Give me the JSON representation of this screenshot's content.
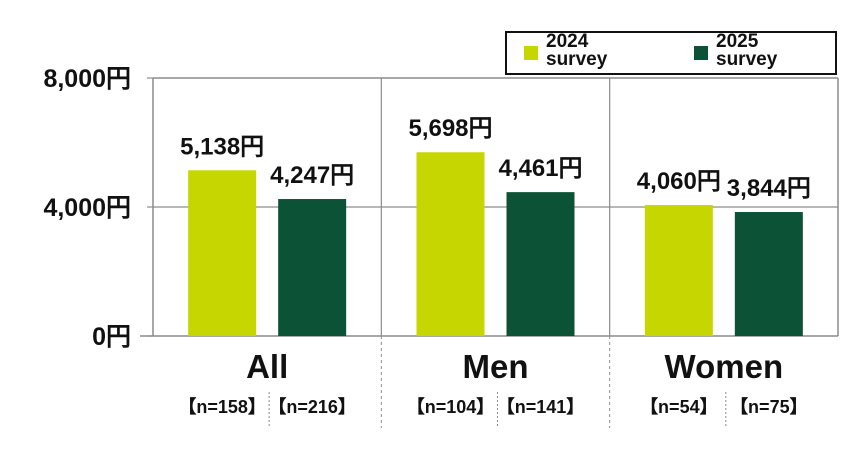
{
  "chart_data": {
    "type": "bar",
    "categories": [
      "All",
      "Men",
      "Women"
    ],
    "series": [
      {
        "name": "2024\nsurvey",
        "color": "#c5d600",
        "values": [
          5138,
          5698,
          4060
        ],
        "labels": [
          "5,138円",
          "5,698円",
          "4,060円"
        ],
        "n": [
          "【n=158】",
          "【n=104】",
          "【n=54】"
        ]
      },
      {
        "name": "2025\nsurvey",
        "color": "#0b5236",
        "values": [
          4247,
          4461,
          3844
        ],
        "labels": [
          "4,247円",
          "4,461円",
          "3,844円"
        ],
        "n": [
          "【n=216】",
          "【n=141】",
          "【n=75】"
        ]
      }
    ],
    "ylim": [
      0,
      8000
    ],
    "yticks": [
      0,
      4000,
      8000
    ],
    "ytick_labels": [
      "0円",
      "4,000円",
      "8,000円"
    ],
    "grid": true,
    "legend_position": "top-right"
  }
}
